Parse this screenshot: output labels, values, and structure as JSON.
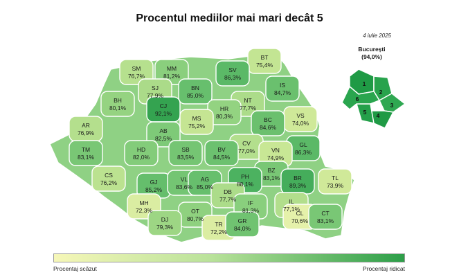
{
  "title": "Procentul mediilor mai mari decât 5",
  "date": "4 iulie 2025",
  "bucharest": {
    "name": "București",
    "value": "(94,0%)",
    "sectors": [
      "1",
      "2",
      "3",
      "4",
      "5",
      "6"
    ]
  },
  "legend": {
    "low_label": "Procentaj scăzut",
    "high_label": "Procentaj ridicat",
    "low_color": "#f6f7b8",
    "high_color": "#2c9e48"
  },
  "counties": [
    {
      "code": "SM",
      "value": "76,7%"
    },
    {
      "code": "MM",
      "value": "81,2%"
    },
    {
      "code": "BT",
      "value": "75,4%"
    },
    {
      "code": "SV",
      "value": "86,3%"
    },
    {
      "code": "SJ",
      "value": "77,9%"
    },
    {
      "code": "BN",
      "value": "85,0%"
    },
    {
      "code": "IS",
      "value": "84,7%"
    },
    {
      "code": "BH",
      "value": "80,1%"
    },
    {
      "code": "CJ",
      "value": "92,1%"
    },
    {
      "code": "NT",
      "value": "77,7%"
    },
    {
      "code": "HR",
      "value": "80,3%"
    },
    {
      "code": "VS",
      "value": "74,0%"
    },
    {
      "code": "MS",
      "value": "75,2%"
    },
    {
      "code": "BC",
      "value": "84,6%"
    },
    {
      "code": "AR",
      "value": "76,9%"
    },
    {
      "code": "AB",
      "value": "82,5%"
    },
    {
      "code": "GL",
      "value": "86,3%"
    },
    {
      "code": "CV",
      "value": "77,0%"
    },
    {
      "code": "TM",
      "value": "83,1%"
    },
    {
      "code": "HD",
      "value": "82,0%"
    },
    {
      "code": "SB",
      "value": "83,5%"
    },
    {
      "code": "BV",
      "value": "84,5%"
    },
    {
      "code": "VN",
      "value": "74,9%"
    },
    {
      "code": "CS",
      "value": "76,2%"
    },
    {
      "code": "BZ",
      "value": "83,1%"
    },
    {
      "code": "TL",
      "value": "73,9%"
    },
    {
      "code": "GJ",
      "value": "85,2%"
    },
    {
      "code": "VL",
      "value": "83,6%"
    },
    {
      "code": "AG",
      "value": "85,0%"
    },
    {
      "code": "PH",
      "value": "88,1%"
    },
    {
      "code": "BR",
      "value": "89,3%"
    },
    {
      "code": "DB",
      "value": "77,7%"
    },
    {
      "code": "MH",
      "value": "72,3%"
    },
    {
      "code": "IL",
      "value": "77,1%"
    },
    {
      "code": "IF",
      "value": "81,3%"
    },
    {
      "code": "OT",
      "value": "80,7%"
    },
    {
      "code": "CL",
      "value": "70,6%"
    },
    {
      "code": "DJ",
      "value": "79,3%"
    },
    {
      "code": "CT",
      "value": "83,1%"
    },
    {
      "code": "TR",
      "value": "72,2%"
    },
    {
      "code": "GR",
      "value": "84,0%"
    }
  ]
}
